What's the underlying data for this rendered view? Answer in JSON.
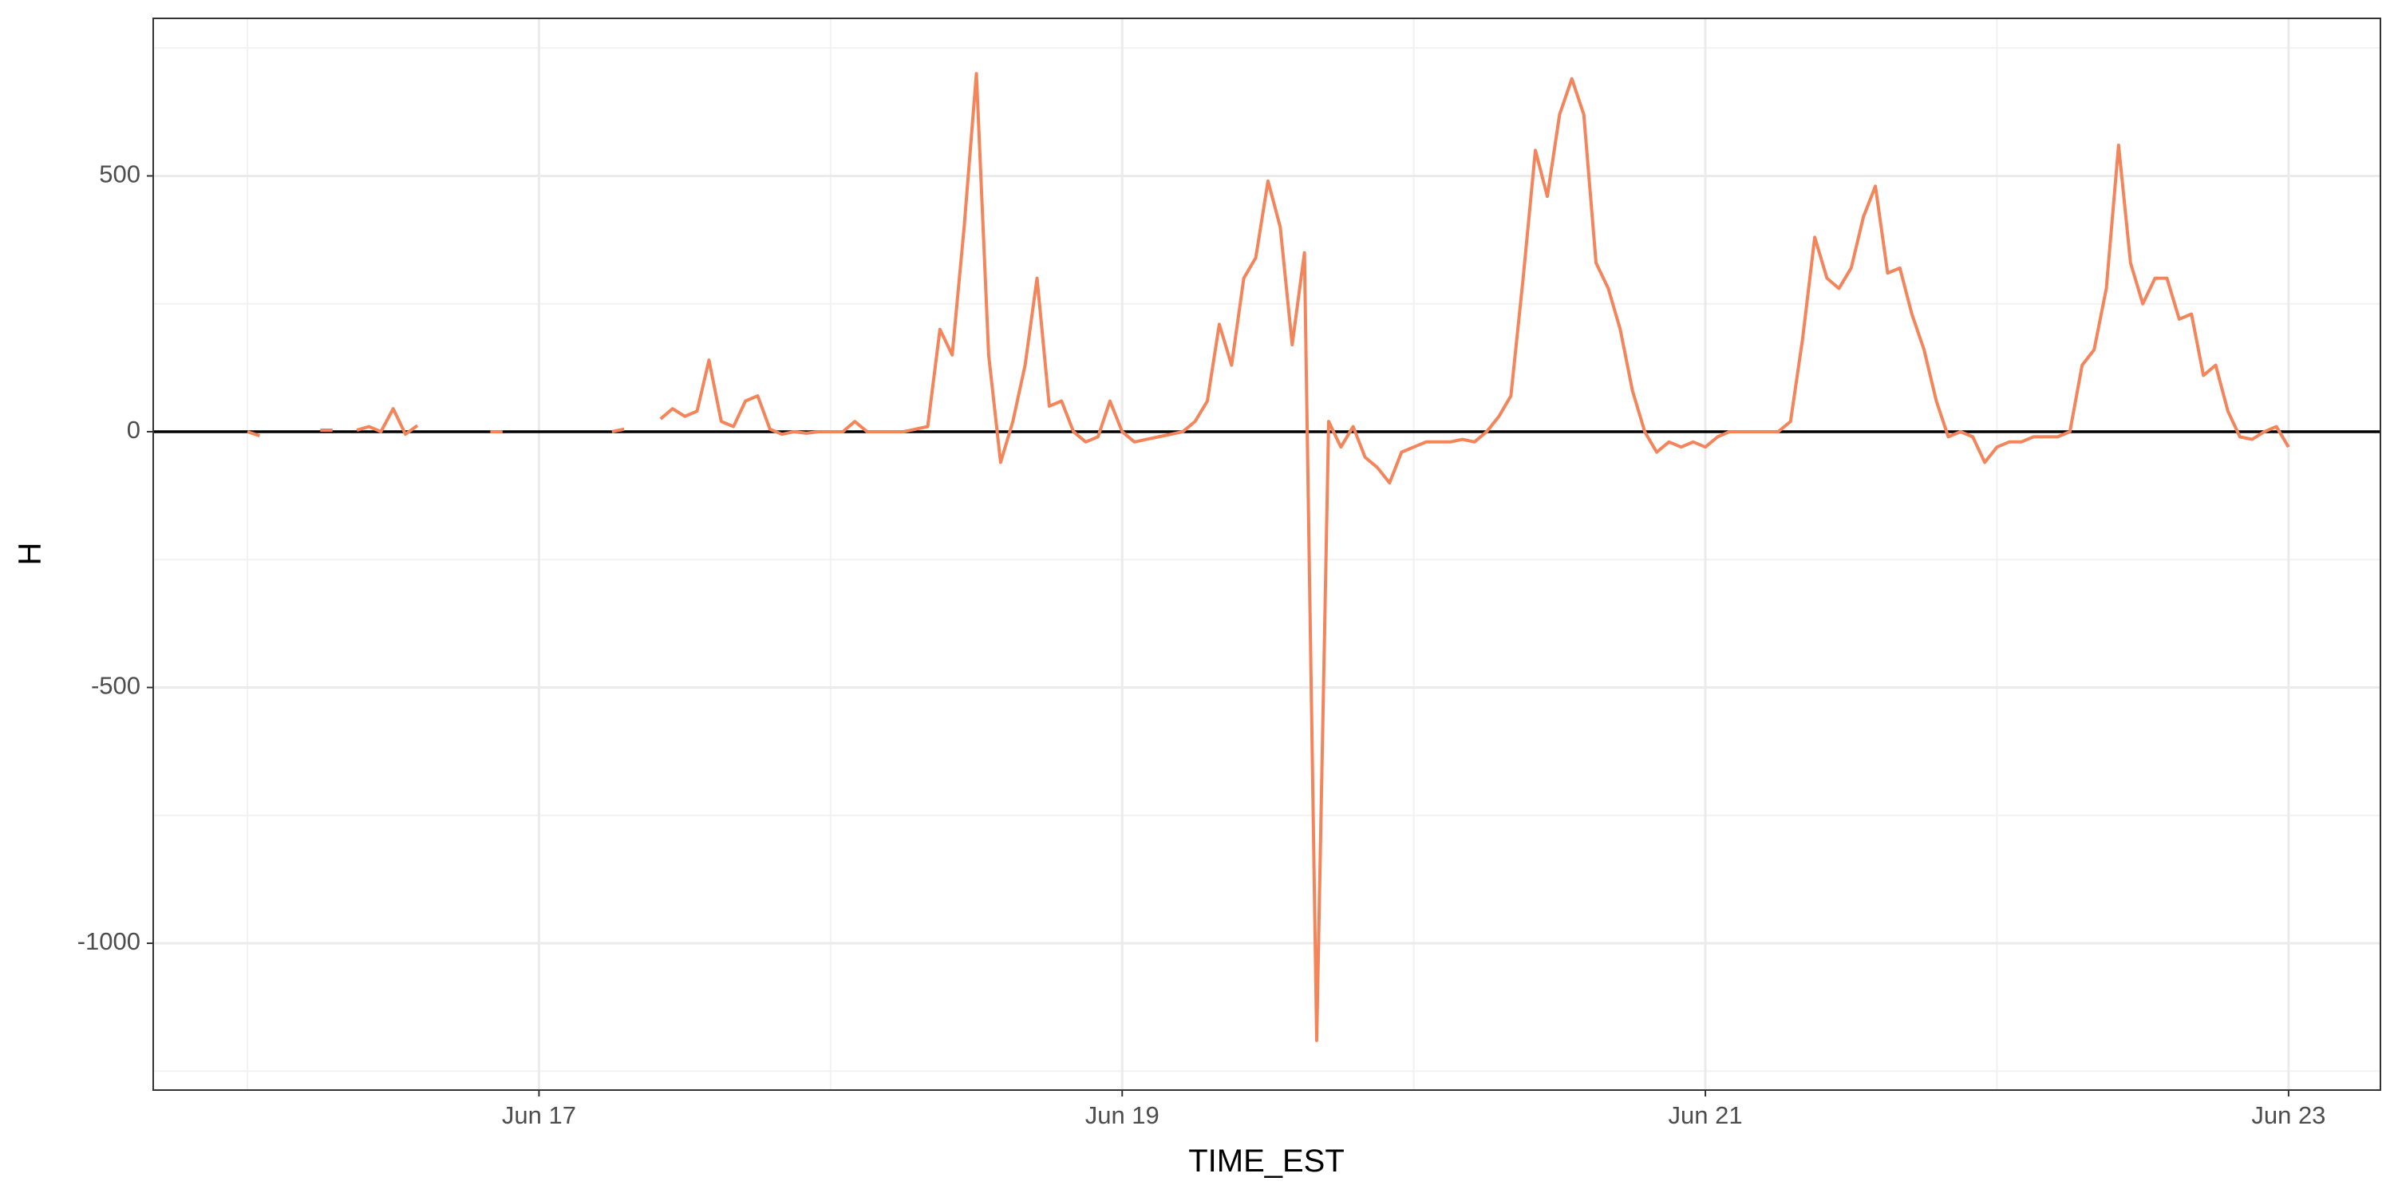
{
  "chart_data": {
    "type": "line",
    "x_label": "TIME_EST",
    "y_label": "H",
    "x": [
      16,
      16.042,
      16.083,
      16.125,
      16.167,
      16.208,
      16.25,
      16.292,
      16.333,
      16.375,
      16.417,
      16.458,
      16.5,
      16.542,
      16.583,
      16.625,
      16.667,
      16.708,
      16.75,
      16.792,
      16.833,
      16.875,
      16.917,
      16.958,
      17,
      17.042,
      17.083,
      17.125,
      17.167,
      17.208,
      17.25,
      17.292,
      17.333,
      17.375,
      17.417,
      17.458,
      17.5,
      17.542,
      17.583,
      17.625,
      17.667,
      17.708,
      17.75,
      17.792,
      17.833,
      17.875,
      17.917,
      17.958,
      18,
      18.042,
      18.083,
      18.125,
      18.167,
      18.208,
      18.25,
      18.292,
      18.333,
      18.375,
      18.417,
      18.458,
      18.5,
      18.542,
      18.583,
      18.625,
      18.667,
      18.708,
      18.75,
      18.792,
      18.833,
      18.875,
      18.917,
      18.958,
      19,
      19.042,
      19.083,
      19.125,
      19.167,
      19.208,
      19.25,
      19.292,
      19.333,
      19.375,
      19.417,
      19.458,
      19.5,
      19.542,
      19.583,
      19.625,
      19.667,
      19.708,
      19.75,
      19.792,
      19.833,
      19.875,
      19.917,
      19.958,
      20,
      20.042,
      20.083,
      20.125,
      20.167,
      20.208,
      20.25,
      20.292,
      20.333,
      20.375,
      20.417,
      20.458,
      20.5,
      20.542,
      20.583,
      20.625,
      20.667,
      20.708,
      20.75,
      20.792,
      20.833,
      20.875,
      20.917,
      20.958,
      21,
      21.042,
      21.083,
      21.125,
      21.167,
      21.208,
      21.25,
      21.292,
      21.333,
      21.375,
      21.417,
      21.458,
      21.5,
      21.542,
      21.583,
      21.625,
      21.667,
      21.708,
      21.75,
      21.792,
      21.833,
      21.875,
      21.917,
      21.958,
      22,
      22.042,
      22.083,
      22.125,
      22.167,
      22.208,
      22.25,
      22.292,
      22.333,
      22.375,
      22.417,
      22.458,
      22.5,
      22.542,
      22.583,
      22.625,
      22.667,
      22.708,
      22.75,
      22.792,
      22.833,
      22.875,
      22.917,
      22.958,
      23
    ],
    "series": [
      {
        "color": "#f4845a",
        "values": [
          0,
          -8,
          null,
          null,
          null,
          null,
          3,
          3,
          null,
          3,
          10,
          0,
          45,
          -5,
          12,
          null,
          null,
          null,
          null,
          null,
          0,
          0,
          null,
          null,
          null,
          null,
          null,
          null,
          null,
          null,
          0,
          5,
          null,
          null,
          25,
          45,
          30,
          40,
          140,
          20,
          10,
          60,
          70,
          5,
          -5,
          0,
          -3,
          0,
          0,
          0,
          20,
          0,
          0,
          0,
          0,
          5,
          10,
          200,
          150,
          400,
          700,
          150,
          -60,
          20,
          130,
          300,
          50,
          60,
          0,
          -20,
          -10,
          60,
          0,
          -20,
          -15,
          -10,
          -5,
          0,
          20,
          60,
          210,
          130,
          300,
          340,
          490,
          400,
          170,
          350,
          -1190,
          20,
          -30,
          10,
          -50,
          -70,
          -100,
          -40,
          -30,
          -20,
          -20,
          -20,
          -15,
          -20,
          0,
          30,
          70,
          300,
          550,
          460,
          620,
          690,
          620,
          330,
          280,
          200,
          80,
          0,
          -40,
          -20,
          -30,
          -20,
          -30,
          -10,
          0,
          0,
          0,
          0,
          0,
          20,
          180,
          380,
          300,
          280,
          320,
          420,
          480,
          310,
          320,
          230,
          160,
          60,
          -10,
          0,
          -10,
          -60,
          -30,
          -20,
          -20,
          -10,
          -10,
          -10,
          0,
          130,
          160,
          280,
          560,
          330,
          250,
          300,
          300,
          220,
          230,
          110,
          130,
          40,
          -10,
          -15,
          0,
          10,
          -30
        ]
      }
    ],
    "xlim": [
      15.677,
      23.315
    ],
    "xticks": [
      {
        "value": 17,
        "label": "Jun 17"
      },
      {
        "value": 19,
        "label": "Jun 19"
      },
      {
        "value": 21,
        "label": "Jun 21"
      },
      {
        "value": 23,
        "label": "Jun 23"
      }
    ],
    "minor_xticks": [
      16,
      18,
      20,
      22
    ],
    "ylim": [
      -1287,
      808
    ],
    "yticks": [
      -1000,
      -500,
      0,
      500
    ],
    "minor_yticks": [
      -1250,
      -750,
      -250,
      250,
      750
    ],
    "hline": 0,
    "grid": true
  }
}
